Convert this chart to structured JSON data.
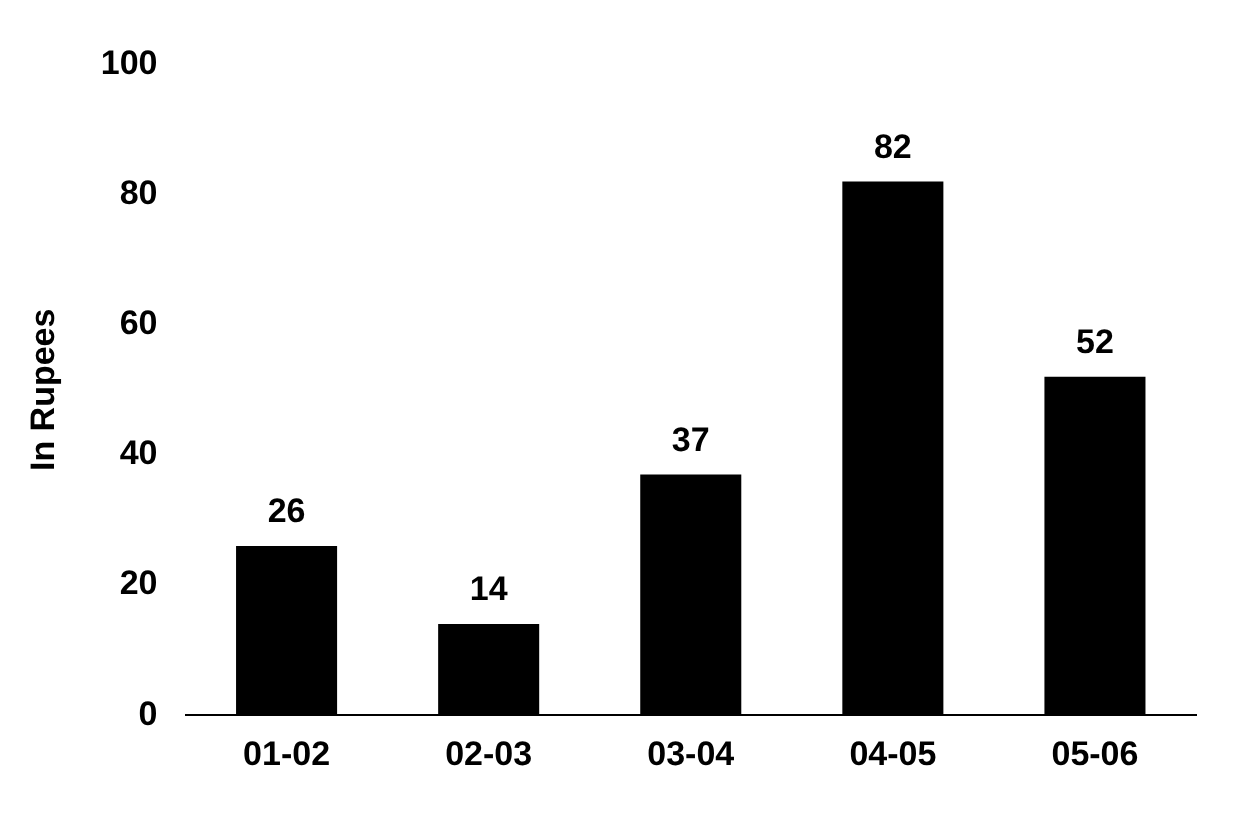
{
  "chart_data": {
    "type": "bar",
    "ylabel": "In Rupees",
    "categories": [
      "01-02",
      "02-03",
      "03-04",
      "04-05",
      "05-06"
    ],
    "values": [
      26,
      14,
      37,
      82,
      52
    ],
    "color": "#000000",
    "ylim": [
      0,
      100
    ],
    "yticks": [
      0,
      20,
      40,
      60,
      80,
      100
    ],
    "grid": false,
    "data_labels": true,
    "legend": false
  }
}
